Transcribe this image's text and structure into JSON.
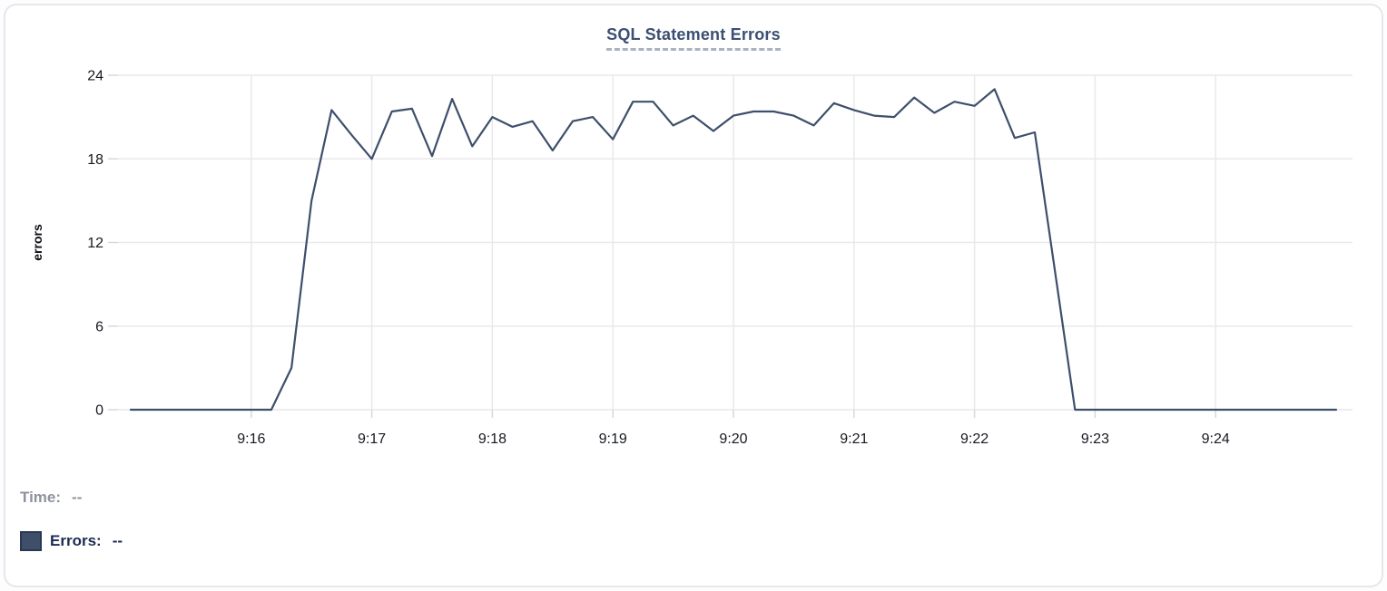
{
  "chart_data": {
    "type": "line",
    "title": "SQL Statement Errors",
    "xlabel": "",
    "ylabel": "errors",
    "ylim": [
      0,
      24
    ],
    "y_ticks": [
      0,
      6,
      12,
      18,
      24
    ],
    "x_tick_labels": [
      "9:16",
      "9:17",
      "9:18",
      "9:19",
      "9:20",
      "9:21",
      "9:22",
      "9:23",
      "9:24"
    ],
    "x_start": "9:15:00",
    "x_end": "9:25:00",
    "grid": "on",
    "legend_position": "bottom-left",
    "series": [
      {
        "name": "Errors",
        "color": "#3e4f6b",
        "start_time": "9:15:00",
        "interval_seconds": 10,
        "values": [
          0,
          0,
          0,
          0,
          0,
          0,
          0,
          0,
          3,
          15,
          21.5,
          19.7,
          18,
          21.4,
          21.6,
          18.2,
          22.3,
          18.9,
          21,
          20.3,
          20.7,
          18.6,
          20.7,
          21,
          19.4,
          22.1,
          22.1,
          20.4,
          21.1,
          20,
          21.1,
          21.4,
          21.4,
          21.1,
          20.4,
          22,
          21.5,
          21.1,
          21,
          22.4,
          21.3,
          22.1,
          21.8,
          23,
          19.5,
          19.9,
          10,
          0,
          0,
          0,
          0,
          0,
          0,
          0,
          0,
          0,
          0,
          0,
          0,
          0,
          0
        ]
      }
    ]
  },
  "readout": {
    "time_label": "Time:",
    "time_value": "--",
    "errors_label": "Errors:",
    "errors_value": "--"
  },
  "icons": {
    "errors_series_swatch": "filled-square"
  },
  "colors": {
    "line": "#3e4f6b",
    "title": "#3b4f73",
    "title_underline": "#a9b3c5",
    "axis_text": "#16191f",
    "ylabel_text": "#0b0d12",
    "gridline": "#e8e9ec",
    "tick": "#d6d8dc",
    "time_text": "#8d929c",
    "errors_text": "#1c2b52",
    "swatch_fill": "#3f4f6a",
    "swatch_border": "#273850",
    "card_border": "#e5e7ec",
    "background": "#ffffff"
  }
}
